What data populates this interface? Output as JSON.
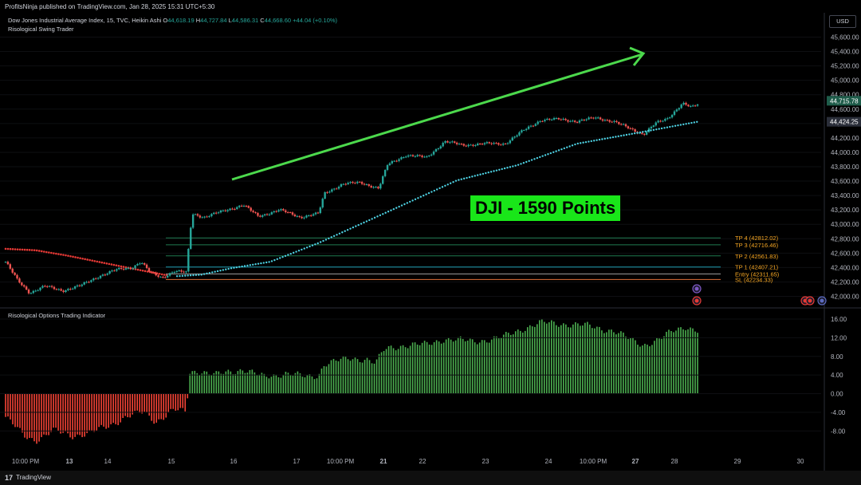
{
  "header": {
    "publish_line": "ProfitsNinja published on TradingView.com, Jan 28, 2025 15:31 UTC+5:30"
  },
  "legend": {
    "symbol": "Dow Jones Industrial Average Index, 15, TVC, Heikin Ashi",
    "ohlc_o_label": "O",
    "ohlc_o": "44,618.19",
    "ohlc_h_label": "H",
    "ohlc_h": "44,727.84",
    "ohlc_l_label": "L",
    "ohlc_l": "44,586.31",
    "ohlc_c_label": "C",
    "ohlc_c": "44,668.60",
    "change": "+44.04 (+0.10%)",
    "indicator1": "Risological Swing Trader",
    "indicator2": "Risological Options Trading Indicator"
  },
  "currency_button": "USD",
  "annotation": {
    "text": "DJI - 1590 Points"
  },
  "footer": {
    "brand": "TradingView",
    "logo": "17"
  },
  "colors": {
    "background": "#000000",
    "bull": "#26a69a",
    "bear": "#ef5350",
    "trend_line": "#4cd94c",
    "ma_line": "#4dd0e1",
    "red_line": "#e53935",
    "hist_up": "#4caf50",
    "hist_down": "#f44336",
    "label_orange": "#f5a623",
    "price_tag": "#1e5c4a"
  },
  "chart_data": [
    {
      "type": "candlestick",
      "title": "Dow Jones Industrial Average Index, 15, TVC, Heikin Ashi",
      "x_tick_labels": [
        "10:00 PM",
        "13",
        "14",
        "15",
        "16",
        "17",
        "10:00 PM",
        "21",
        "22",
        "23",
        "24",
        "10:00 PM",
        "27",
        "28",
        "29",
        "30"
      ],
      "y_tick_labels": [
        "42,000.00",
        "42,200.00",
        "42,400.00",
        "42,600.00",
        "42,800.00",
        "43,000.00",
        "43,200.00",
        "43,400.00",
        "43,600.00",
        "43,800.00",
        "44,000.00",
        "44,200.00",
        "44,400.00",
        "44,600.00",
        "44,800.00",
        "45,000.00",
        "45,200.00",
        "45,400.00",
        "45,600.00"
      ],
      "ylim": [
        41900,
        45750
      ],
      "price_path": [
        {
          "t": 0,
          "v": 42480
        },
        {
          "t": 4,
          "v": 42220
        },
        {
          "t": 8,
          "v": 42050
        },
        {
          "t": 13,
          "v": 42140
        },
        {
          "t": 19,
          "v": 42080
        },
        {
          "t": 25,
          "v": 42150
        },
        {
          "t": 31,
          "v": 42280
        },
        {
          "t": 37,
          "v": 42370
        },
        {
          "t": 42,
          "v": 42400
        },
        {
          "t": 45,
          "v": 42480
        },
        {
          "t": 48,
          "v": 42330
        },
        {
          "t": 52,
          "v": 42260
        },
        {
          "t": 56,
          "v": 42350
        },
        {
          "t": 60,
          "v": 42330
        },
        {
          "t": 62,
          "v": 43150
        },
        {
          "t": 66,
          "v": 43100
        },
        {
          "t": 72,
          "v": 43180
        },
        {
          "t": 79,
          "v": 43270
        },
        {
          "t": 84,
          "v": 43110
        },
        {
          "t": 91,
          "v": 43200
        },
        {
          "t": 98,
          "v": 43100
        },
        {
          "t": 104,
          "v": 43150
        },
        {
          "t": 106,
          "v": 43430
        },
        {
          "t": 112,
          "v": 43560
        },
        {
          "t": 118,
          "v": 43580
        },
        {
          "t": 124,
          "v": 43500
        },
        {
          "t": 127,
          "v": 43830
        },
        {
          "t": 133,
          "v": 43960
        },
        {
          "t": 140,
          "v": 43930
        },
        {
          "t": 146,
          "v": 44150
        },
        {
          "t": 152,
          "v": 44100
        },
        {
          "t": 160,
          "v": 44120
        },
        {
          "t": 166,
          "v": 44120
        },
        {
          "t": 172,
          "v": 44300
        },
        {
          "t": 178,
          "v": 44450
        },
        {
          "t": 184,
          "v": 44460
        },
        {
          "t": 190,
          "v": 44430
        },
        {
          "t": 196,
          "v": 44480
        },
        {
          "t": 202,
          "v": 44430
        },
        {
          "t": 208,
          "v": 44320
        },
        {
          "t": 212,
          "v": 44250
        },
        {
          "t": 216,
          "v": 44400
        },
        {
          "t": 220,
          "v": 44470
        },
        {
          "t": 225,
          "v": 44680
        },
        {
          "t": 228,
          "v": 44620
        },
        {
          "t": 230,
          "v": 44669
        }
      ],
      "ma_line": [
        {
          "t": 57,
          "v": 42280
        },
        {
          "t": 65,
          "v": 42300
        },
        {
          "t": 75,
          "v": 42390
        },
        {
          "t": 88,
          "v": 42480
        },
        {
          "t": 104,
          "v": 42740
        },
        {
          "t": 130,
          "v": 43230
        },
        {
          "t": 150,
          "v": 43610
        },
        {
          "t": 170,
          "v": 43820
        },
        {
          "t": 190,
          "v": 44120
        },
        {
          "t": 210,
          "v": 44270
        },
        {
          "t": 230,
          "v": 44424
        }
      ],
      "red_line": [
        {
          "t": 0,
          "v": 42660
        },
        {
          "t": 10,
          "v": 42640
        },
        {
          "t": 20,
          "v": 42570
        },
        {
          "t": 32,
          "v": 42470
        },
        {
          "t": 44,
          "v": 42370
        },
        {
          "t": 54,
          "v": 42290
        }
      ],
      "levels": [
        {
          "name": "TP 4",
          "value": 42812.02,
          "label": "TP 4 (42812.02)"
        },
        {
          "name": "TP 3",
          "value": 42716.46,
          "label": "TP 3 (42716.46)"
        },
        {
          "name": "TP 2",
          "value": 42561.83,
          "label": "TP 2 (42561.83)"
        },
        {
          "name": "TP 1",
          "value": 42407.21,
          "label": "TP 1 (42407.21)"
        },
        {
          "name": "Entry",
          "value": 42311.65,
          "label": "Entry (42311.65)"
        },
        {
          "name": "SL",
          "value": 42234.33,
          "label": "SL (42234.33)"
        }
      ],
      "price_tags": [
        {
          "value": 44715.78,
          "label": "44,715.78"
        },
        {
          "value": 44424.25,
          "label": "44,424.25"
        }
      ],
      "trend_arrow": {
        "from": {
          "t": 75,
          "v": 43830
        },
        "to": {
          "t": 210,
          "v": 45400
        }
      }
    },
    {
      "type": "bar",
      "title": "Risological Options Trading Indicator",
      "y_tick_labels": [
        "-8.00",
        "-4.00",
        "0.00",
        "4.00",
        "8.00",
        "12.00",
        "16.00"
      ],
      "ylim": [
        -11,
        17
      ],
      "profile": [
        {
          "t": 0,
          "v": -5
        },
        {
          "t": 6,
          "v": -9
        },
        {
          "t": 10,
          "v": -10
        },
        {
          "t": 16,
          "v": -8
        },
        {
          "t": 22,
          "v": -9
        },
        {
          "t": 28,
          "v": -8.5
        },
        {
          "t": 34,
          "v": -7
        },
        {
          "t": 40,
          "v": -5
        },
        {
          "t": 46,
          "v": -4
        },
        {
          "t": 50,
          "v": -6
        },
        {
          "t": 56,
          "v": -3.5
        },
        {
          "t": 60,
          "v": -4
        },
        {
          "t": 61,
          "v": 4.5
        },
        {
          "t": 64,
          "v": 5
        },
        {
          "t": 70,
          "v": 4
        },
        {
          "t": 79,
          "v": 5.3
        },
        {
          "t": 86,
          "v": 3.5
        },
        {
          "t": 93,
          "v": 4.5
        },
        {
          "t": 100,
          "v": 3.5
        },
        {
          "t": 104,
          "v": 4
        },
        {
          "t": 106,
          "v": 6.5
        },
        {
          "t": 114,
          "v": 7.5
        },
        {
          "t": 120,
          "v": 7.5
        },
        {
          "t": 123,
          "v": 6.5
        },
        {
          "t": 126,
          "v": 9.5
        },
        {
          "t": 133,
          "v": 10.5
        },
        {
          "t": 140,
          "v": 10.5
        },
        {
          "t": 146,
          "v": 11.8
        },
        {
          "t": 155,
          "v": 11.2
        },
        {
          "t": 165,
          "v": 12
        },
        {
          "t": 172,
          "v": 14
        },
        {
          "t": 178,
          "v": 15.2
        },
        {
          "t": 186,
          "v": 15
        },
        {
          "t": 194,
          "v": 14.5
        },
        {
          "t": 202,
          "v": 13.5
        },
        {
          "t": 208,
          "v": 11.5
        },
        {
          "t": 212,
          "v": 10.5
        },
        {
          "t": 217,
          "v": 11.5
        },
        {
          "t": 222,
          "v": 13.5
        },
        {
          "t": 226,
          "v": 14.5
        },
        {
          "t": 230,
          "v": 13.5
        }
      ]
    }
  ]
}
